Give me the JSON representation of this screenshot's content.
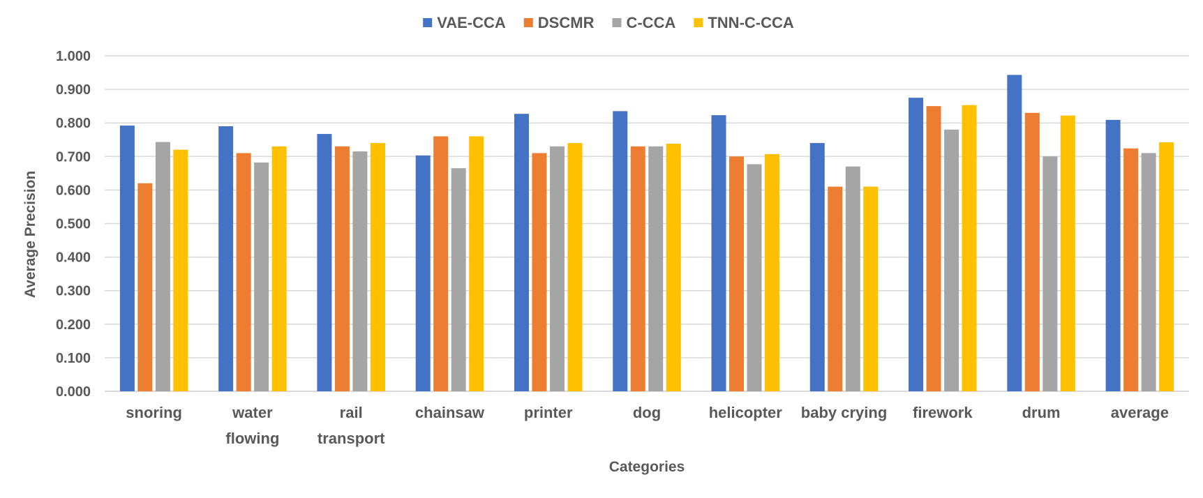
{
  "chart_data": {
    "type": "bar",
    "title": "",
    "xlabel": "Categories",
    "ylabel": "Average Precision",
    "ylim": [
      0,
      1
    ],
    "yticks": [
      "0.000",
      "0.100",
      "0.200",
      "0.300",
      "0.400",
      "0.500",
      "0.600",
      "0.700",
      "0.800",
      "0.900",
      "1.000"
    ],
    "grid": true,
    "legend_position": "top-center",
    "categories": [
      [
        "snoring"
      ],
      [
        "water",
        "flowing"
      ],
      [
        "rail",
        "transport"
      ],
      [
        "chainsaw"
      ],
      [
        "printer"
      ],
      [
        "dog"
      ],
      [
        "helicopter"
      ],
      [
        "baby crying"
      ],
      [
        "firework"
      ],
      [
        "drum"
      ],
      [
        "average"
      ]
    ],
    "series": [
      {
        "name": "VAE-CCA",
        "color": "#4472c4",
        "values": [
          0.792,
          0.79,
          0.767,
          0.703,
          0.827,
          0.835,
          0.823,
          0.74,
          0.875,
          0.943,
          0.809
        ]
      },
      {
        "name": "DSCMR",
        "color": "#ed7d31",
        "values": [
          0.62,
          0.71,
          0.73,
          0.76,
          0.71,
          0.73,
          0.7,
          0.61,
          0.85,
          0.83,
          0.724
        ]
      },
      {
        "name": "C-CCA",
        "color": "#a5a5a5",
        "values": [
          0.743,
          0.682,
          0.715,
          0.665,
          0.73,
          0.73,
          0.677,
          0.67,
          0.78,
          0.7,
          0.71
        ]
      },
      {
        "name": "TNN-C-CCA",
        "color": "#ffc000",
        "values": [
          0.72,
          0.73,
          0.74,
          0.76,
          0.74,
          0.738,
          0.707,
          0.61,
          0.853,
          0.822,
          0.742
        ]
      }
    ]
  }
}
